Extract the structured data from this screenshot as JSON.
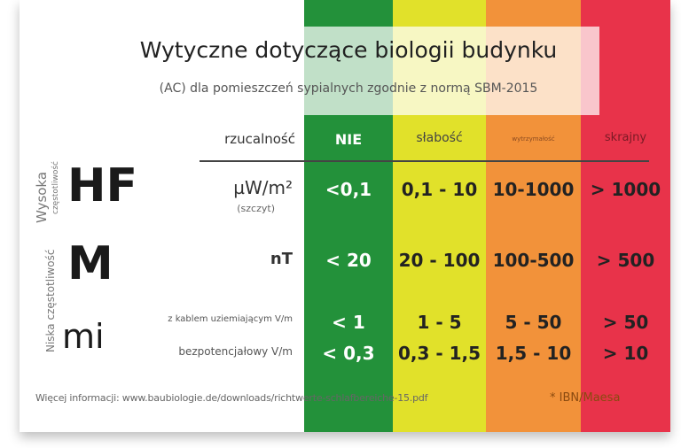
{
  "title": "Wytyczne dotyczące biologii budynku",
  "subtitle": "(AC) dla pomieszczeń sypialnych zgodnie z normą SBM-2015",
  "colors": {
    "green": "#23913a",
    "yellow": "#e1e12a",
    "orange": "#f2923a",
    "red": "#e8334a"
  },
  "header": {
    "label": "rzucalność",
    "levels": [
      "NIE",
      "słabość",
      "wytrzymałość",
      "skrajny"
    ]
  },
  "groups": {
    "high": {
      "line1": "Wysoka",
      "line2": "częstotliwość"
    },
    "low": "Niska częstotliwość"
  },
  "rows": [
    {
      "code": "HF",
      "unit": "µW/m²",
      "note": "(szczyt)",
      "values": [
        "<0,1",
        "0,1 - 10",
        "10-1000",
        "> 1000"
      ]
    },
    {
      "code": "M",
      "unit": "nT",
      "values": [
        "< 20",
        "20 - 100",
        "100-500",
        "> 500"
      ]
    },
    {
      "code": "mi",
      "unit": "z kablem uziemiającym V/m",
      "values": [
        "< 1",
        "1 - 5",
        "5 - 50",
        "> 50"
      ]
    },
    {
      "unit": "bezpotencjałowy V/m",
      "values": [
        "< 0,3",
        "0,3 - 1,5",
        "1,5 - 10",
        "> 10"
      ]
    }
  ],
  "footer": {
    "info": "Więcej informacji: www.baubiologie.de/downloads/richtwerte-schlafbereiche-15.pdf",
    "source": "* IBN/Maesa"
  }
}
